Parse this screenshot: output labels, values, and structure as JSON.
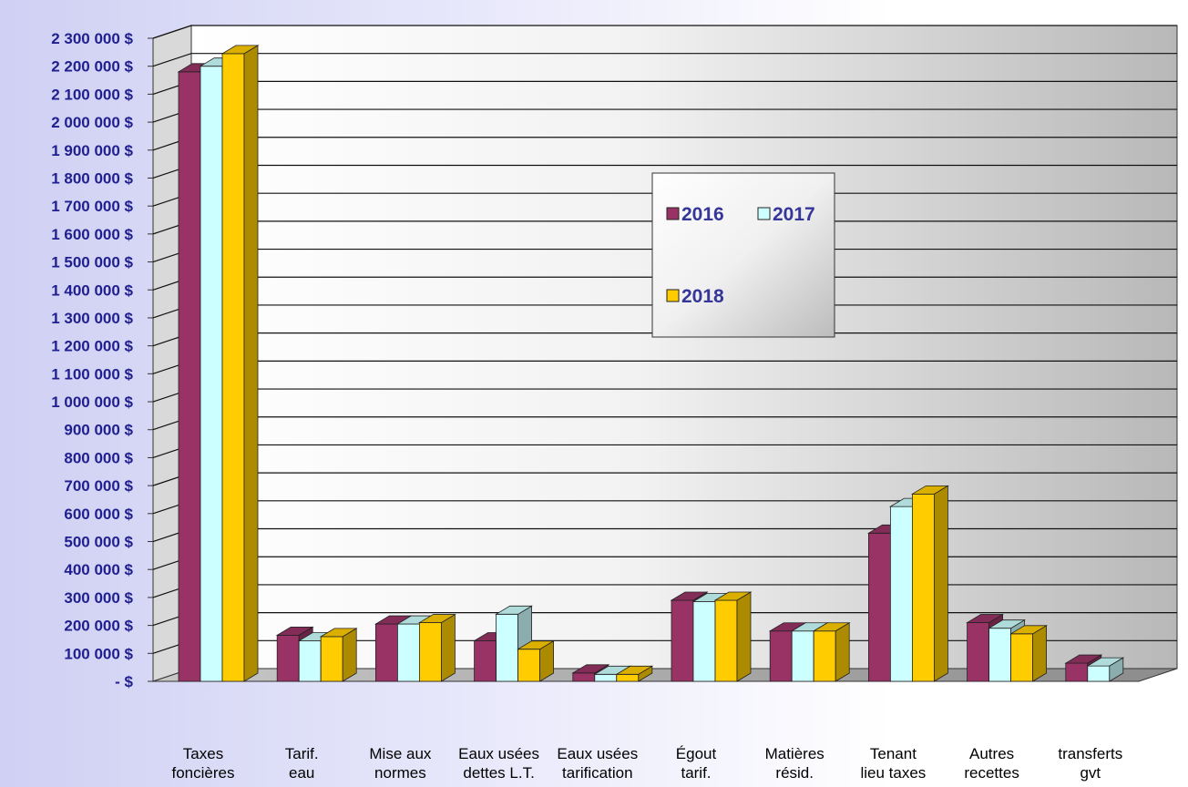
{
  "chart_data": {
    "type": "bar",
    "title": "",
    "xlabel": "",
    "ylabel": "",
    "ylim": [
      0,
      2300000
    ],
    "y_step": 100000,
    "y_tick_labels": [
      "-  $",
      "100 000 $",
      "200 000 $",
      "300 000 $",
      "400 000 $",
      "500 000 $",
      "600 000 $",
      "700 000 $",
      "800 000 $",
      "900 000 $",
      "1 000 000 $",
      "1 100 000 $",
      "1 200 000 $",
      "1 300 000 $",
      "1 400 000 $",
      "1 500 000 $",
      "1 600 000 $",
      "1 700 000 $",
      "1 800 000 $",
      "1 900 000 $",
      "2 000 000 $",
      "2 100 000 $",
      "2 200 000 $",
      "2 300 000 $"
    ],
    "categories": [
      [
        "Taxes",
        "foncières"
      ],
      [
        "Tarif.",
        "eau"
      ],
      [
        "Mise aux",
        "normes"
      ],
      [
        "Eaux usées",
        "dettes L.T."
      ],
      [
        "Eaux usées",
        "tarification"
      ],
      [
        "Égout",
        "tarif."
      ],
      [
        "Matières",
        "résid."
      ],
      [
        "Tenant",
        "lieu taxes"
      ],
      [
        "Autres",
        "recettes"
      ],
      [
        "transferts",
        "gvt"
      ]
    ],
    "series": [
      {
        "name": "2016",
        "color": "#993366",
        "values": [
          2180000,
          165000,
          205000,
          145000,
          30000,
          290000,
          180000,
          530000,
          210000,
          65000
        ]
      },
      {
        "name": "2017",
        "color": "#ccffff",
        "values": [
          2200000,
          145000,
          205000,
          240000,
          25000,
          285000,
          180000,
          625000,
          190000,
          55000
        ]
      },
      {
        "name": "2018",
        "color": "#ffcc00",
        "values": [
          2245000,
          160000,
          210000,
          115000,
          25000,
          290000,
          180000,
          670000,
          170000,
          null
        ]
      }
    ],
    "grid": true,
    "legend_position": "center-right"
  }
}
